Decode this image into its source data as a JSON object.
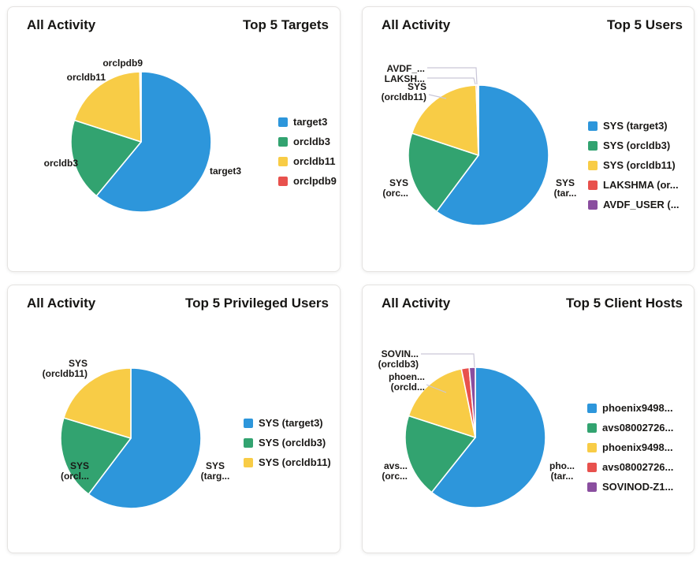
{
  "palette": {
    "series1_blue": "#2D96DB",
    "series2_green": "#32A370",
    "series3_yellow": "#F8CC46",
    "series4_red": "#E8514D",
    "series5_purple": "#8A4E9F",
    "leader_line": "#C9C6D8",
    "title_text": "#161513",
    "label_text": "#1A1816"
  },
  "chart_data": [
    {
      "type": "pie",
      "card_title": "All Activity",
      "chart_title": "Top 5 Targets",
      "legend_position": "right",
      "slices": [
        {
          "label": "target3",
          "value": 61.0,
          "color": "#2D96DB"
        },
        {
          "label": "orcldb3",
          "value": 19.0,
          "color": "#32A370"
        },
        {
          "label": "orcldb11",
          "value": 19.7,
          "color": "#F8CC46"
        },
        {
          "label": "orclpdb9",
          "value": 0.3,
          "color": "#E8514D"
        }
      ],
      "legend": [
        {
          "label": "target3",
          "color": "#2D96DB"
        },
        {
          "label": "orcldb3",
          "color": "#32A370"
        },
        {
          "label": "orcldb11",
          "color": "#F8CC46"
        },
        {
          "label": "orclpdb9",
          "color": "#E8514D"
        }
      ],
      "callouts": {
        "top": [
          "orclpdb9"
        ],
        "upper_left": [
          "orcldb11"
        ],
        "left": [
          "orcldb3"
        ],
        "right": [
          "target3"
        ]
      }
    },
    {
      "type": "pie",
      "card_title": "All Activity",
      "chart_title": "Top 5 Users",
      "legend_position": "right",
      "slices": [
        {
          "label": "SYS (target3)",
          "value": 60.2,
          "color": "#2D96DB"
        },
        {
          "label": "SYS (orcldb3)",
          "value": 19.9,
          "color": "#32A370"
        },
        {
          "label": "SYS (orcldb11)",
          "value": 19.35,
          "color": "#F8CC46"
        },
        {
          "label": "LAKSHMA (or...",
          "value": 0.33,
          "color": "#E8514D"
        },
        {
          "label": "AVDF_USER (...",
          "value": 0.22,
          "color": "#8A4E9F"
        }
      ],
      "legend": [
        {
          "label": "SYS (target3)",
          "color": "#2D96DB"
        },
        {
          "label": "SYS (orcldb3)",
          "color": "#32A370"
        },
        {
          "label": "SYS (orcldb11)",
          "color": "#F8CC46"
        },
        {
          "label": "LAKSHMA (or...",
          "color": "#E8514D"
        },
        {
          "label": "AVDF_USER (...",
          "color": "#8A4E9F"
        }
      ],
      "callouts": {
        "c1": [
          "AVDF_..."
        ],
        "c2": [
          "LAKSH..."
        ],
        "c3": [
          "SYS",
          "(orcldb11)"
        ],
        "left": [
          "SYS",
          "(orc..."
        ],
        "right": [
          "SYS",
          "(tar..."
        ]
      }
    },
    {
      "type": "pie",
      "card_title": "All Activity",
      "chart_title": "Top 5 Privileged Users",
      "legend_position": "right",
      "slices": [
        {
          "label": "SYS (target3)",
          "value": 60.3,
          "color": "#2D96DB"
        },
        {
          "label": "SYS (orcldb3)",
          "value": 19.4,
          "color": "#32A370"
        },
        {
          "label": "SYS (orcldb11)",
          "value": 20.3,
          "color": "#F8CC46"
        }
      ],
      "legend": [
        {
          "label": "SYS (target3)",
          "color": "#2D96DB"
        },
        {
          "label": "SYS (orcldb3)",
          "color": "#32A370"
        },
        {
          "label": "SYS (orcldb11)",
          "color": "#F8CC46"
        }
      ],
      "callouts": {
        "upper_left": [
          "SYS",
          "(orcldb11)"
        ],
        "left": [
          "SYS",
          "(orcl..."
        ],
        "right": [
          "SYS",
          "(targ..."
        ]
      }
    },
    {
      "type": "pie",
      "card_title": "All Activity",
      "chart_title": "Top 5 Client Hosts",
      "legend_position": "right",
      "slices": [
        {
          "label": "phoenix9498...",
          "value": 60.7,
          "color": "#2D96DB"
        },
        {
          "label": "avs08002726...",
          "value": 19.3,
          "color": "#32A370"
        },
        {
          "label": "phoenix9498...",
          "value": 16.8,
          "color": "#F8CC46"
        },
        {
          "label": "avs08002726...",
          "value": 1.8,
          "color": "#E8514D"
        },
        {
          "label": "SOVINOD-Z1...",
          "value": 1.4,
          "color": "#8A4E9F"
        }
      ],
      "legend": [
        {
          "label": "phoenix9498...",
          "color": "#2D96DB"
        },
        {
          "label": "avs08002726...",
          "color": "#32A370"
        },
        {
          "label": "phoenix9498...",
          "color": "#F8CC46"
        },
        {
          "label": "avs08002726...",
          "color": "#E8514D"
        },
        {
          "label": "SOVINOD-Z1...",
          "color": "#8A4E9F"
        }
      ],
      "callouts": {
        "c1": [
          "SOVIN...",
          "(orcldb3)"
        ],
        "c2": [
          "phoen...",
          "(orcld..."
        ],
        "left": [
          "avs...",
          "(orc..."
        ],
        "right": [
          "pho...",
          "(tar..."
        ]
      }
    }
  ]
}
